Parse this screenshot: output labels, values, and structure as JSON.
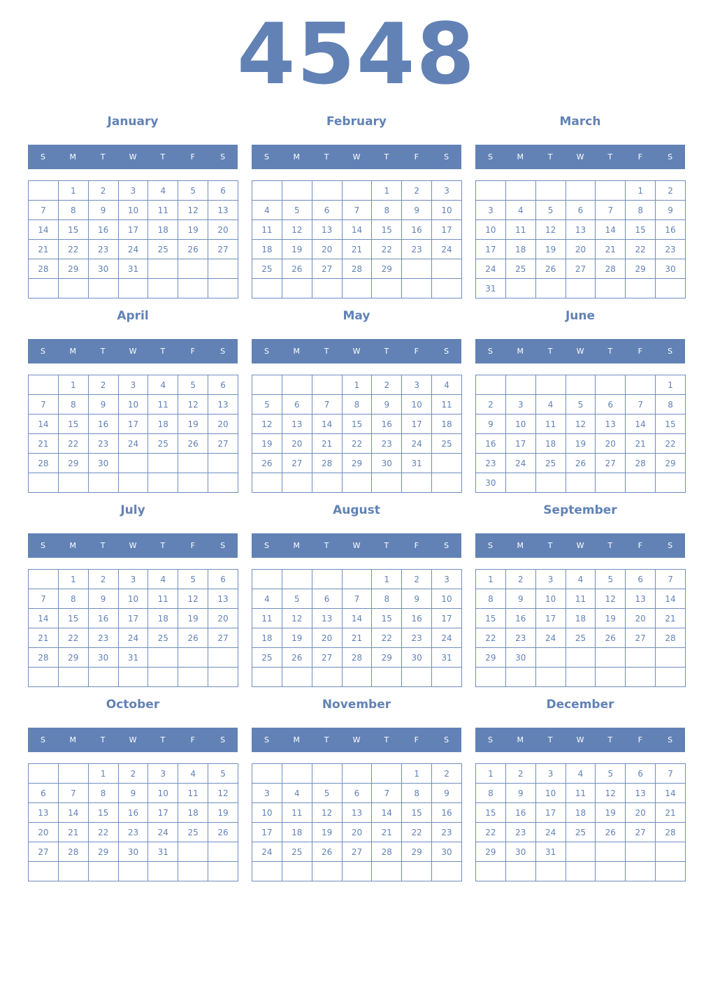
{
  "year": "4548",
  "weekday_labels": [
    "S",
    "M",
    "T",
    "W",
    "T",
    "F",
    "S"
  ],
  "colors": {
    "accent": "#6282b5",
    "header_text": "#ffffff"
  },
  "months": [
    {
      "name": "January",
      "first_weekday": 1,
      "days": 31
    },
    {
      "name": "February",
      "first_weekday": 4,
      "days": 29
    },
    {
      "name": "March",
      "first_weekday": 5,
      "days": 31
    },
    {
      "name": "April",
      "first_weekday": 1,
      "days": 30
    },
    {
      "name": "May",
      "first_weekday": 3,
      "days": 31
    },
    {
      "name": "June",
      "first_weekday": 6,
      "days": 30
    },
    {
      "name": "July",
      "first_weekday": 1,
      "days": 31
    },
    {
      "name": "August",
      "first_weekday": 4,
      "days": 31
    },
    {
      "name": "September",
      "first_weekday": 0,
      "days": 30
    },
    {
      "name": "October",
      "first_weekday": 2,
      "days": 31
    },
    {
      "name": "November",
      "first_weekday": 5,
      "days": 30
    },
    {
      "name": "December",
      "first_weekday": 0,
      "days": 31
    }
  ]
}
